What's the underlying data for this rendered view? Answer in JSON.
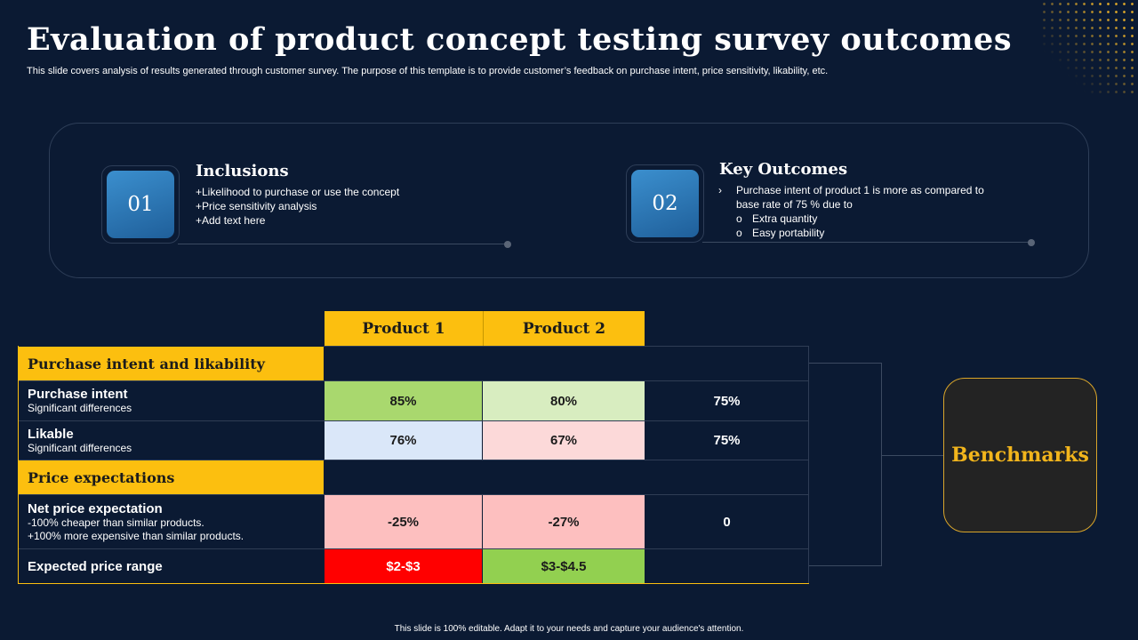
{
  "title": "Evaluation of product concept testing survey outcomes",
  "subtitle": "This slide covers analysis of results generated through customer survey. The purpose of this template is to provide customer’s feedback on purchase intent, price sensitivity, likability, etc.",
  "inclusions": {
    "number": "01",
    "heading": "Inclusions",
    "items": [
      "+Likelihood to purchase or use the concept",
      "+Price sensitivity analysis",
      "+Add text here"
    ]
  },
  "outcomes": {
    "number": "02",
    "heading": "Key Outcomes",
    "bullet_marker": "›",
    "sub_marker": "o",
    "bullet_line1": "Purchase intent of product 1 is more as compared to",
    "bullet_line2": "base rate of 75 % due to",
    "subitems": [
      "Extra quantity",
      "Easy portability"
    ]
  },
  "table": {
    "columns": [
      "Product 1",
      "Product 2"
    ],
    "sections": [
      {
        "label": "Purchase intent and likability",
        "rows": [
          {
            "label": "Purchase intent",
            "desc": [
              "Significant differences"
            ],
            "p1": "85%",
            "p2": "80%",
            "base": "75%",
            "p1_color": "#a9d86e",
            "p2_color": "#d8edc0"
          },
          {
            "label": "Likable",
            "desc": [
              "Significant differences"
            ],
            "p1": "76%",
            "p2": "67%",
            "base": "75%",
            "p1_color": "#dae7f9",
            "p2_color": "#fcd9d9"
          }
        ]
      },
      {
        "label": "Price expectations",
        "rows": [
          {
            "label": "Net price expectation",
            "desc": [
              "-100% cheaper than similar products.",
              "+100% more expensive than similar products."
            ],
            "p1": "-25%",
            "p2": "-27%",
            "base": "0",
            "p1_color": "#fdbfbf",
            "p2_color": "#fdbfbf"
          },
          {
            "label": "Expected price range",
            "desc": [],
            "p1": "$2-$3",
            "p2": "$3-$4.5",
            "base": "",
            "p1_color": "#ff0000",
            "p2_color": "#92d050"
          }
        ]
      }
    ]
  },
  "benchmarks_label": "Benchmarks",
  "footer": "This slide is 100% editable. Adapt it to your needs and capture your audience's attention.",
  "colors": {
    "background": "#0b1a33",
    "accent": "#fcbf0f",
    "number_box": "#2f7dbd"
  }
}
